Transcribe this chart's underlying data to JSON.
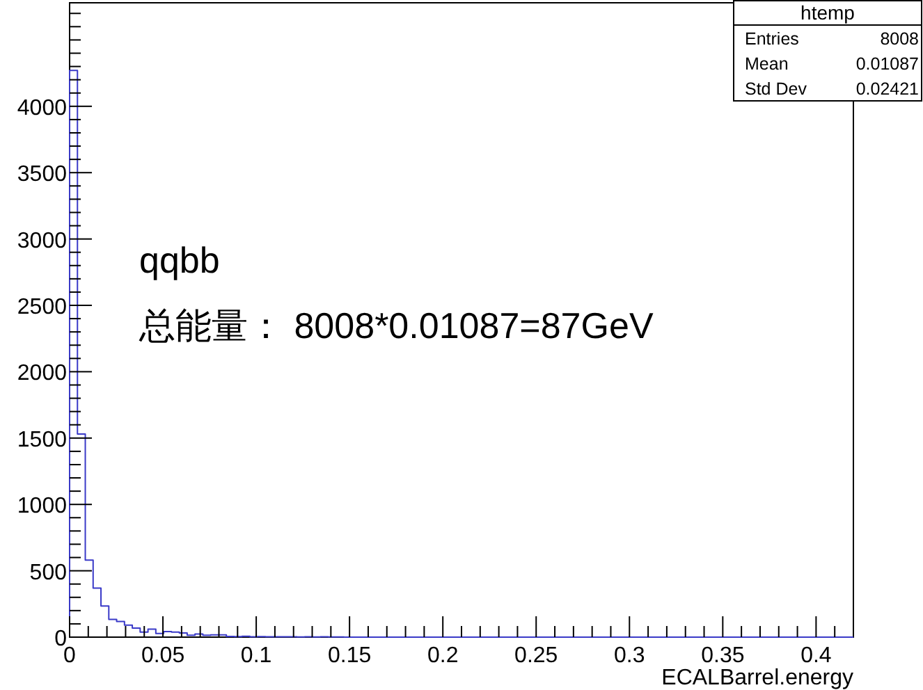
{
  "chart_data": {
    "type": "histogram",
    "xlabel": "ECALBarrel.energy",
    "color": "#3a3ac8",
    "bins": [
      0,
      0.0042,
      0.0084,
      0.0126,
      0.0168,
      0.021,
      0.0252,
      0.0294,
      0.0336,
      0.0378,
      0.042,
      0.0462,
      0.0504,
      0.0546,
      0.0588,
      0.063,
      0.0672,
      0.0714,
      0.0756,
      0.0798,
      0.084,
      0.0882,
      0.0924,
      0.0966,
      0.1008,
      0.105,
      0.1092,
      0.1134,
      0.1176,
      0.1218,
      0.126,
      0.1302,
      0.1344,
      0.1386,
      0.1428,
      0.147,
      0.1512,
      0.1554,
      0.1596,
      0.1638,
      0.168,
      0.1722,
      0.1764,
      0.1806,
      0.1848,
      0.189,
      0.1932,
      0.1974,
      0.2016,
      0.2058,
      0.21,
      0.2142,
      0.2184,
      0.2226,
      0.2268,
      0.231,
      0.2352,
      0.2394,
      0.2436,
      0.2478,
      0.252,
      0.2562,
      0.2604,
      0.2646,
      0.2688,
      0.273,
      0.2772,
      0.2814,
      0.2856,
      0.2898,
      0.294,
      0.2982,
      0.3024,
      0.3066,
      0.3108,
      0.315,
      0.3192,
      0.3234,
      0.3276,
      0.3318,
      0.336,
      0.3402,
      0.3444,
      0.3486,
      0.3528,
      0.357,
      0.3612,
      0.3654,
      0.3696,
      0.3738,
      0.378,
      0.3822,
      0.3864,
      0.3906,
      0.3948,
      0.399,
      0.4032,
      0.4074,
      0.4116,
      0.4158,
      0.42
    ],
    "values": [
      4270,
      1530,
      580,
      370,
      235,
      133,
      118,
      91,
      68,
      38,
      60,
      28,
      42,
      38,
      31,
      14,
      24,
      14,
      17,
      17,
      5,
      4,
      6,
      3,
      4,
      2,
      3,
      2,
      3,
      1,
      2,
      1,
      2,
      1,
      1,
      0,
      0,
      0,
      0,
      0,
      0,
      0,
      0,
      0,
      0,
      0,
      0,
      0,
      0,
      0,
      0,
      0,
      0,
      0,
      0,
      0,
      0,
      0,
      0,
      0,
      0,
      0,
      0,
      0,
      0,
      0,
      0,
      0,
      0,
      0,
      0,
      0,
      0,
      0,
      0,
      0,
      0,
      0,
      0,
      0,
      0,
      0,
      0,
      0,
      0,
      0,
      0,
      0,
      0,
      0,
      0,
      0,
      0,
      0,
      0,
      0,
      0,
      0,
      0,
      0
    ],
    "xlim": [
      0,
      0.42
    ],
    "ylim": [
      0,
      4780
    ],
    "xticks": [
      0,
      {
        "value": 0.01,
        "label": null
      },
      {
        "value": 0.02,
        "label": null
      },
      {
        "value": 0.03,
        "label": null
      },
      {
        "value": 0.04,
        "label": null
      },
      0.05,
      {
        "value": 0.06,
        "label": null
      },
      {
        "value": 0.07,
        "label": null
      },
      {
        "value": 0.08,
        "label": null
      },
      {
        "value": 0.09,
        "label": null
      },
      0.1,
      {
        "value": 0.11,
        "label": null
      },
      {
        "value": 0.12,
        "label": null
      },
      {
        "value": 0.13,
        "label": null
      },
      {
        "value": 0.14,
        "label": null
      },
      0.15,
      {
        "value": 0.16,
        "label": null
      },
      {
        "value": 0.17,
        "label": null
      },
      {
        "value": 0.18,
        "label": null
      },
      {
        "value": 0.19,
        "label": null
      },
      0.2,
      {
        "value": 0.21,
        "label": null
      },
      {
        "value": 0.22,
        "label": null
      },
      {
        "value": 0.23,
        "label": null
      },
      {
        "value": 0.24,
        "label": null
      },
      0.25,
      {
        "value": 0.26,
        "label": null
      },
      {
        "value": 0.27,
        "label": null
      },
      {
        "value": 0.28,
        "label": null
      },
      {
        "value": 0.29,
        "label": null
      },
      0.3,
      {
        "value": 0.31,
        "label": null
      },
      {
        "value": 0.32,
        "label": null
      },
      {
        "value": 0.33,
        "label": null
      },
      {
        "value": 0.34,
        "label": null
      },
      0.35,
      {
        "value": 0.36,
        "label": null
      },
      {
        "value": 0.37,
        "label": null
      },
      {
        "value": 0.38,
        "label": null
      },
      {
        "value": 0.39,
        "label": null
      },
      0.4,
      {
        "value": 0.41,
        "label": null
      }
    ],
    "yticks": [
      0,
      {
        "value": 100,
        "label": null
      },
      {
        "value": 200,
        "label": null
      },
      {
        "value": 300,
        "label": null
      },
      {
        "value": 400,
        "label": null
      },
      500,
      {
        "value": 600,
        "label": null
      },
      {
        "value": 700,
        "label": null
      },
      {
        "value": 800,
        "label": null
      },
      {
        "value": 900,
        "label": null
      },
      1000,
      {
        "value": 1100,
        "label": null
      },
      {
        "value": 1200,
        "label": null
      },
      {
        "value": 1300,
        "label": null
      },
      {
        "value": 1400,
        "label": null
      },
      1500,
      {
        "value": 1600,
        "label": null
      },
      {
        "value": 1700,
        "label": null
      },
      {
        "value": 1800,
        "label": null
      },
      {
        "value": 1900,
        "label": null
      },
      2000,
      {
        "value": 2100,
        "label": null
      },
      {
        "value": 2200,
        "label": null
      },
      {
        "value": 2300,
        "label": null
      },
      {
        "value": 2400,
        "label": null
      },
      2500,
      {
        "value": 2600,
        "label": null
      },
      {
        "value": 2700,
        "label": null
      },
      {
        "value": 2800,
        "label": null
      },
      {
        "value": 2900,
        "label": null
      },
      3000,
      {
        "value": 3100,
        "label": null
      },
      {
        "value": 3200,
        "label": null
      },
      {
        "value": 3300,
        "label": null
      },
      {
        "value": 3400,
        "label": null
      },
      3500,
      {
        "value": 3600,
        "label": null
      },
      {
        "value": 3700,
        "label": null
      },
      {
        "value": 3800,
        "label": null
      },
      {
        "value": 3900,
        "label": null
      },
      4000,
      {
        "value": 4100,
        "label": null
      },
      {
        "value": 4200,
        "label": null
      },
      {
        "value": 4300,
        "label": null
      },
      {
        "value": 4400,
        "label": null
      },
      {
        "value": 4500,
        "label": null
      },
      {
        "value": 4600,
        "label": null
      },
      {
        "value": 4700,
        "label": null
      }
    ],
    "grid": false,
    "annotations": [
      "qqbb",
      "总能量： 8008*0.01087=87GeV",
      "htemp",
      "Entries",
      "8008",
      "Mean",
      "0.01087",
      "Std Dev",
      "0.02421"
    ]
  }
}
